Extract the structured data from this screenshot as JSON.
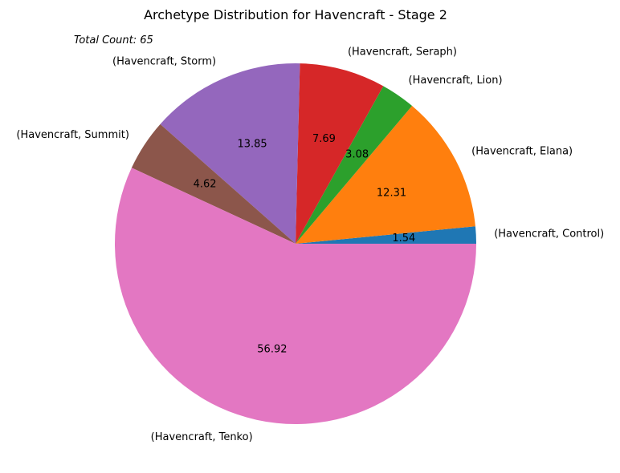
{
  "chart_data": {
    "type": "pie",
    "title": "Archetype Distribution for Havencraft - Stage 2",
    "annotation": "Total Count: 65",
    "slices": [
      {
        "label": "(Havencraft, Control)",
        "value": 1.54,
        "pct_label": "1.54",
        "color": "#1f77b4"
      },
      {
        "label": "(Havencraft, Elana)",
        "value": 12.31,
        "pct_label": "12.31",
        "color": "#ff7f0e"
      },
      {
        "label": "(Havencraft, Lion)",
        "value": 3.08,
        "pct_label": "3.08",
        "color": "#2ca02c"
      },
      {
        "label": "(Havencraft, Seraph)",
        "value": 7.69,
        "pct_label": "7.69",
        "color": "#d62728"
      },
      {
        "label": "(Havencraft, Storm)",
        "value": 13.85,
        "pct_label": "13.85",
        "color": "#9467bd"
      },
      {
        "label": "(Havencraft, Summit)",
        "value": 4.62,
        "pct_label": "4.62",
        "color": "#8c564b"
      },
      {
        "label": "(Havencraft, Tenko)",
        "value": 56.92,
        "pct_label": "56.92",
        "color": "#e377c2"
      }
    ]
  }
}
